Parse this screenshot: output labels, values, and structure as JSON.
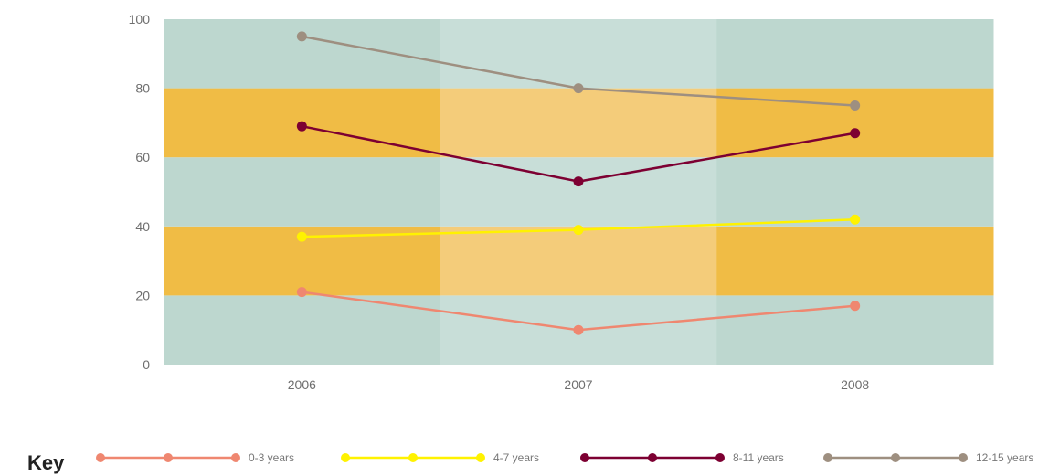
{
  "chart_data": {
    "type": "line",
    "categories": [
      "2006",
      "2007",
      "2008"
    ],
    "ylim": [
      0,
      100
    ],
    "yticks": [
      0,
      20,
      40,
      60,
      80,
      100
    ],
    "series": [
      {
        "name": "0-3 years",
        "color": "#ef8770",
        "values": [
          21,
          10,
          17
        ]
      },
      {
        "name": "4-7 years",
        "color": "#fff200",
        "values": [
          37,
          39,
          42
        ]
      },
      {
        "name": "8-11 years",
        "color": "#7d0032",
        "values": [
          69,
          53,
          67
        ]
      },
      {
        "name": "12-15 years",
        "color": "#9e8f80",
        "values": [
          95,
          80,
          75
        ]
      }
    ],
    "background_bands": {
      "green": "#bdd7cf",
      "green_highlight": "#c8ded8",
      "orange": "#f0bc45",
      "orange_highlight": "#f4cc7a",
      "orange_ranges": [
        [
          20,
          40
        ],
        [
          60,
          80
        ]
      ],
      "highlighted_category": "2007"
    }
  },
  "legend": {
    "title": "Key"
  }
}
